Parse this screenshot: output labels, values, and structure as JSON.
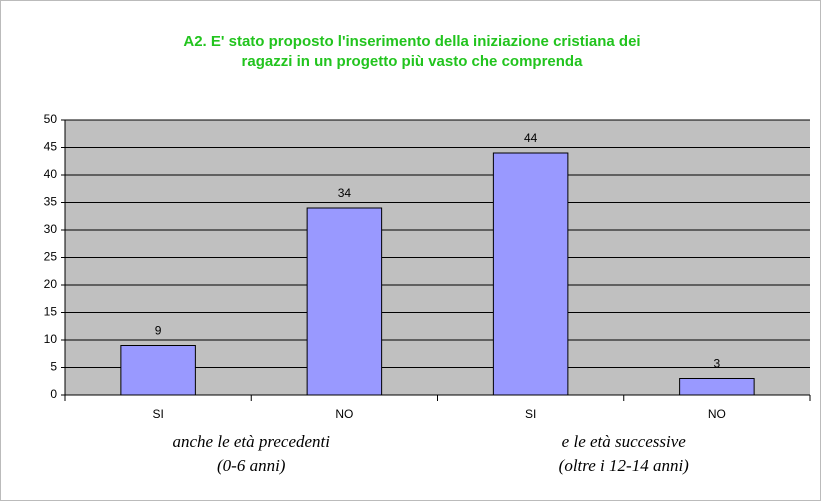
{
  "chart_data": {
    "type": "bar",
    "title": [
      "A2. E' stato proposto l'inserimento della iniziazione cristiana dei",
      "ragazzi in un progetto più vasto che comprenda"
    ],
    "categories": [
      "SI",
      "NO",
      "SI",
      "NO"
    ],
    "groups": [
      {
        "lines": [
          "anche le età precedenti",
          "(0-6 anni)"
        ]
      },
      {
        "lines": [
          "e le età successive",
          "(oltre i 12-14 anni)"
        ]
      }
    ],
    "values": [
      9,
      34,
      44,
      3
    ],
    "color": "#9999ff",
    "ylim": [
      0,
      50
    ],
    "yticks": [
      0,
      5,
      10,
      15,
      20,
      25,
      30,
      35,
      40,
      45,
      50
    ],
    "grid": true
  }
}
